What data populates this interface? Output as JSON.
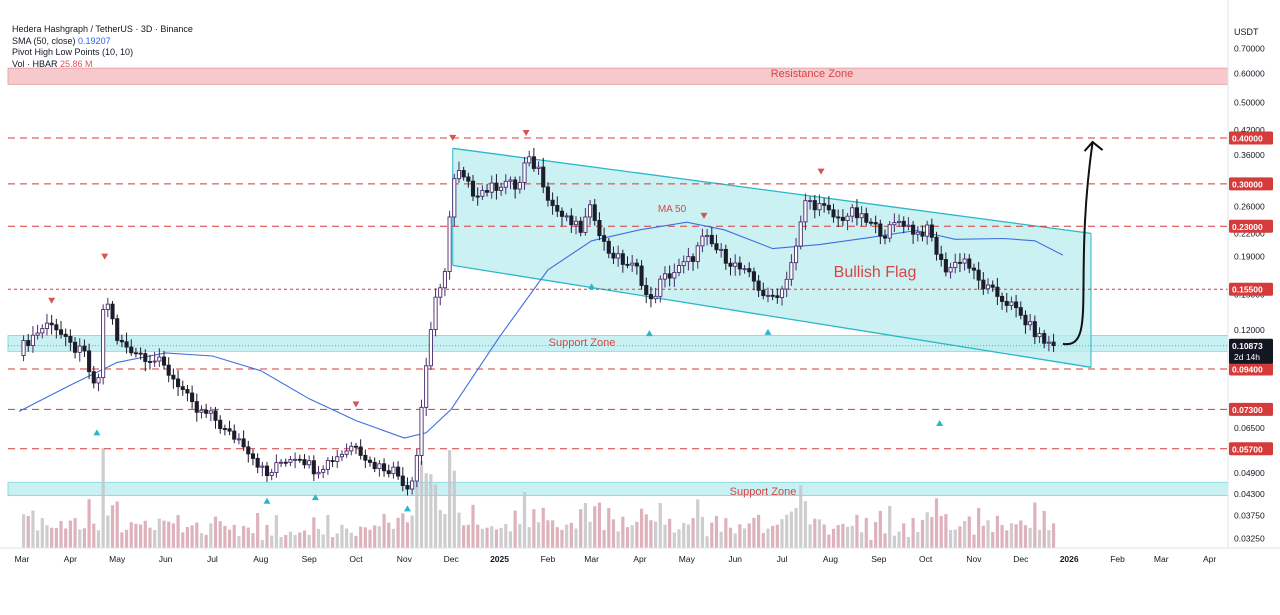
{
  "legend": {
    "symbol": "Hedera Hashgraph / TetherUS · 3D · Binance",
    "sma_label": "SMA (50, close)",
    "sma_value": "0.19207",
    "pivot_label": "Pivot High Low Points (10, 10)",
    "vol_label": "Vol · HBAR",
    "vol_value": "25.86 M"
  },
  "colors": {
    "bull": "#4b2a6b",
    "bear": "#1c1c2a",
    "ma": "#3f6fe0",
    "channel_stroke": "#2bb7c9",
    "channel_fill": "#b9ecef",
    "zone_resistance_fill": "#f6c9cc",
    "zone_resistance_text": "#d94545",
    "zone_support_fill": "#bfeef2",
    "dashed": "#d43b3b",
    "pivot_high": "#d9534f",
    "pivot_low": "#2bb7c9",
    "price_badge": "#131722",
    "volume": "#d8a4ae",
    "volume_gray": "#c4c4c8"
  },
  "annotations": {
    "resistance_zone": "Resistance Zone",
    "support_zone_upper": "Support Zone",
    "support_zone_lower": "Support Zone",
    "ma50": "MA 50",
    "bullish_flag": "Bullish Flag"
  },
  "chart_data": {
    "type": "candlestick",
    "title": "Hedera Hashgraph / TetherUS · 3D · Binance",
    "y_axis_unit": "USDT",
    "y_scale": "log",
    "y_ticks": [
      "0.70000",
      "0.60000",
      "0.50000",
      "0.42000",
      "0.36000",
      "0.30000",
      "0.26000",
      "0.22000",
      "0.19000",
      "0.15000",
      "0.12000",
      "0.09400",
      "0.07300",
      "0.06500",
      "0.04900",
      "0.04300",
      "0.03750",
      "0.03250"
    ],
    "x_ticks": [
      "Mar",
      "Apr",
      "May",
      "Jun",
      "Jul",
      "Aug",
      "Sep",
      "Oct",
      "Nov",
      "Dec",
      "2025",
      "Feb",
      "Mar",
      "Apr",
      "May",
      "Jun",
      "Jul",
      "Aug",
      "Sep",
      "Oct",
      "Nov",
      "Dec",
      "2026",
      "Feb",
      "Mar",
      "Apr"
    ],
    "price_levels": [
      "0.40000",
      "0.30000",
      "0.23000",
      "0.15500",
      "0.09400",
      "0.07300",
      "0.05700"
    ],
    "current_price": "0.10873",
    "countdown": "2d 14h",
    "zones": {
      "resistance": [
        0.56,
        0.62
      ],
      "support_upper": [
        0.105,
        0.116
      ],
      "support_lower": [
        0.0425,
        0.0462
      ]
    },
    "series": [
      {
        "name": "HBAR/USDT",
        "ohlc_anchors_close": [
          [
            "2024-02-28",
            0.106
          ],
          [
            "2024-03-10",
            0.118
          ],
          [
            "2024-03-20",
            0.127
          ],
          [
            "2024-03-30",
            0.11
          ],
          [
            "2024-04-10",
            0.103
          ],
          [
            "2024-04-18",
            0.078
          ],
          [
            "2024-04-23",
            0.155
          ],
          [
            "2024-05-01",
            0.112
          ],
          [
            "2024-05-15",
            0.104
          ],
          [
            "2024-05-28",
            0.098
          ],
          [
            "2024-06-10",
            0.085
          ],
          [
            "2024-06-20",
            0.072
          ],
          [
            "2024-07-01",
            0.07
          ],
          [
            "2024-07-10",
            0.063
          ],
          [
            "2024-07-20",
            0.06
          ],
          [
            "2024-08-05",
            0.048
          ],
          [
            "2024-08-15",
            0.053
          ],
          [
            "2024-08-25",
            0.055
          ],
          [
            "2024-09-05",
            0.05
          ],
          [
            "2024-09-20",
            0.055
          ],
          [
            "2024-10-01",
            0.059
          ],
          [
            "2024-10-10",
            0.052
          ],
          [
            "2024-10-25",
            0.05
          ],
          [
            "2024-11-03",
            0.045
          ],
          [
            "2024-11-08",
            0.05
          ],
          [
            "2024-11-14",
            0.09
          ],
          [
            "2024-11-20",
            0.14
          ],
          [
            "2024-11-26",
            0.16
          ],
          [
            "2024-12-02",
            0.3
          ],
          [
            "2024-12-06",
            0.32
          ],
          [
            "2024-12-15",
            0.285
          ],
          [
            "2024-12-25",
            0.29
          ],
          [
            "2025-01-05",
            0.305
          ],
          [
            "2025-01-13",
            0.29
          ],
          [
            "2025-01-18",
            0.35
          ],
          [
            "2025-01-26",
            0.33
          ],
          [
            "2025-02-03",
            0.265
          ],
          [
            "2025-02-12",
            0.24
          ],
          [
            "2025-02-22",
            0.225
          ],
          [
            "2025-03-01",
            0.26
          ],
          [
            "2025-03-10",
            0.2
          ],
          [
            "2025-03-20",
            0.185
          ],
          [
            "2025-03-31",
            0.175
          ],
          [
            "2025-04-07",
            0.14
          ],
          [
            "2025-04-15",
            0.165
          ],
          [
            "2025-04-25",
            0.175
          ],
          [
            "2025-05-05",
            0.19
          ],
          [
            "2025-05-12",
            0.215
          ],
          [
            "2025-05-22",
            0.195
          ],
          [
            "2025-06-01",
            0.18
          ],
          [
            "2025-06-12",
            0.165
          ],
          [
            "2025-06-22",
            0.145
          ],
          [
            "2025-07-01",
            0.155
          ],
          [
            "2025-07-10",
            0.2
          ],
          [
            "2025-07-16",
            0.27
          ],
          [
            "2025-07-26",
            0.26
          ],
          [
            "2025-08-05",
            0.24
          ],
          [
            "2025-08-15",
            0.25
          ],
          [
            "2025-08-25",
            0.235
          ],
          [
            "2025-09-05",
            0.22
          ],
          [
            "2025-09-15",
            0.24
          ],
          [
            "2025-09-25",
            0.22
          ],
          [
            "2025-10-03",
            0.225
          ],
          [
            "2025-10-10",
            0.185
          ],
          [
            "2025-10-15",
            0.175
          ],
          [
            "2025-10-25",
            0.19
          ],
          [
            "2025-11-05",
            0.16
          ],
          [
            "2025-11-15",
            0.15
          ],
          [
            "2025-11-25",
            0.14
          ],
          [
            "2025-12-05",
            0.125
          ],
          [
            "2025-12-15",
            0.112
          ],
          [
            "2025-12-22",
            0.109
          ]
        ]
      },
      {
        "name": "MA 50",
        "anchors": [
          [
            "2024-02-28",
            0.072
          ],
          [
            "2024-04-01",
            0.085
          ],
          [
            "2024-05-01",
            0.098
          ],
          [
            "2024-06-01",
            0.104
          ],
          [
            "2024-07-01",
            0.102
          ],
          [
            "2024-08-01",
            0.093
          ],
          [
            "2024-09-01",
            0.078
          ],
          [
            "2024-10-01",
            0.068
          ],
          [
            "2024-11-01",
            0.061
          ],
          [
            "2024-11-15",
            0.063
          ],
          [
            "2024-12-01",
            0.073
          ],
          [
            "2025-01-01",
            0.115
          ],
          [
            "2025-02-01",
            0.175
          ],
          [
            "2025-03-01",
            0.21
          ],
          [
            "2025-04-01",
            0.225
          ],
          [
            "2025-05-01",
            0.236
          ],
          [
            "2025-05-25",
            0.225
          ],
          [
            "2025-06-25",
            0.2
          ],
          [
            "2025-07-25",
            0.205
          ],
          [
            "2025-08-25",
            0.214
          ],
          [
            "2025-09-25",
            0.224
          ],
          [
            "2025-10-20",
            0.212
          ],
          [
            "2025-11-20",
            0.213
          ],
          [
            "2025-12-10",
            0.21
          ],
          [
            "2025-12-28",
            0.192
          ]
        ]
      }
    ],
    "pivot_highs": [
      [
        "2024-03-20",
        0.138
      ],
      [
        "2024-04-23",
        0.182
      ],
      [
        "2024-10-01",
        0.072
      ],
      [
        "2024-12-02",
        0.383
      ],
      [
        "2025-01-18",
        0.395
      ],
      [
        "2025-05-12",
        0.235
      ],
      [
        "2025-07-26",
        0.31
      ]
    ],
    "pivot_lows": [
      [
        "2024-04-18",
        0.066
      ],
      [
        "2024-08-05",
        0.043
      ],
      [
        "2024-09-05",
        0.044
      ],
      [
        "2024-11-03",
        0.041
      ],
      [
        "2025-03-01",
        0.165
      ],
      [
        "2025-04-07",
        0.123
      ],
      [
        "2025-06-22",
        0.124
      ],
      [
        "2025-10-10",
        0.07
      ]
    ],
    "flag_channel": {
      "upper": [
        [
          "2024-12-02",
          0.375
        ],
        [
          "2026-01-15",
          0.22
        ]
      ],
      "lower": [
        [
          "2024-12-02",
          0.18
        ],
        [
          "2026-01-15",
          0.095
        ]
      ]
    },
    "projection_arrow": [
      [
        "2025-12-28",
        0.11
      ],
      [
        "2026-01-16",
        0.39
      ]
    ]
  }
}
